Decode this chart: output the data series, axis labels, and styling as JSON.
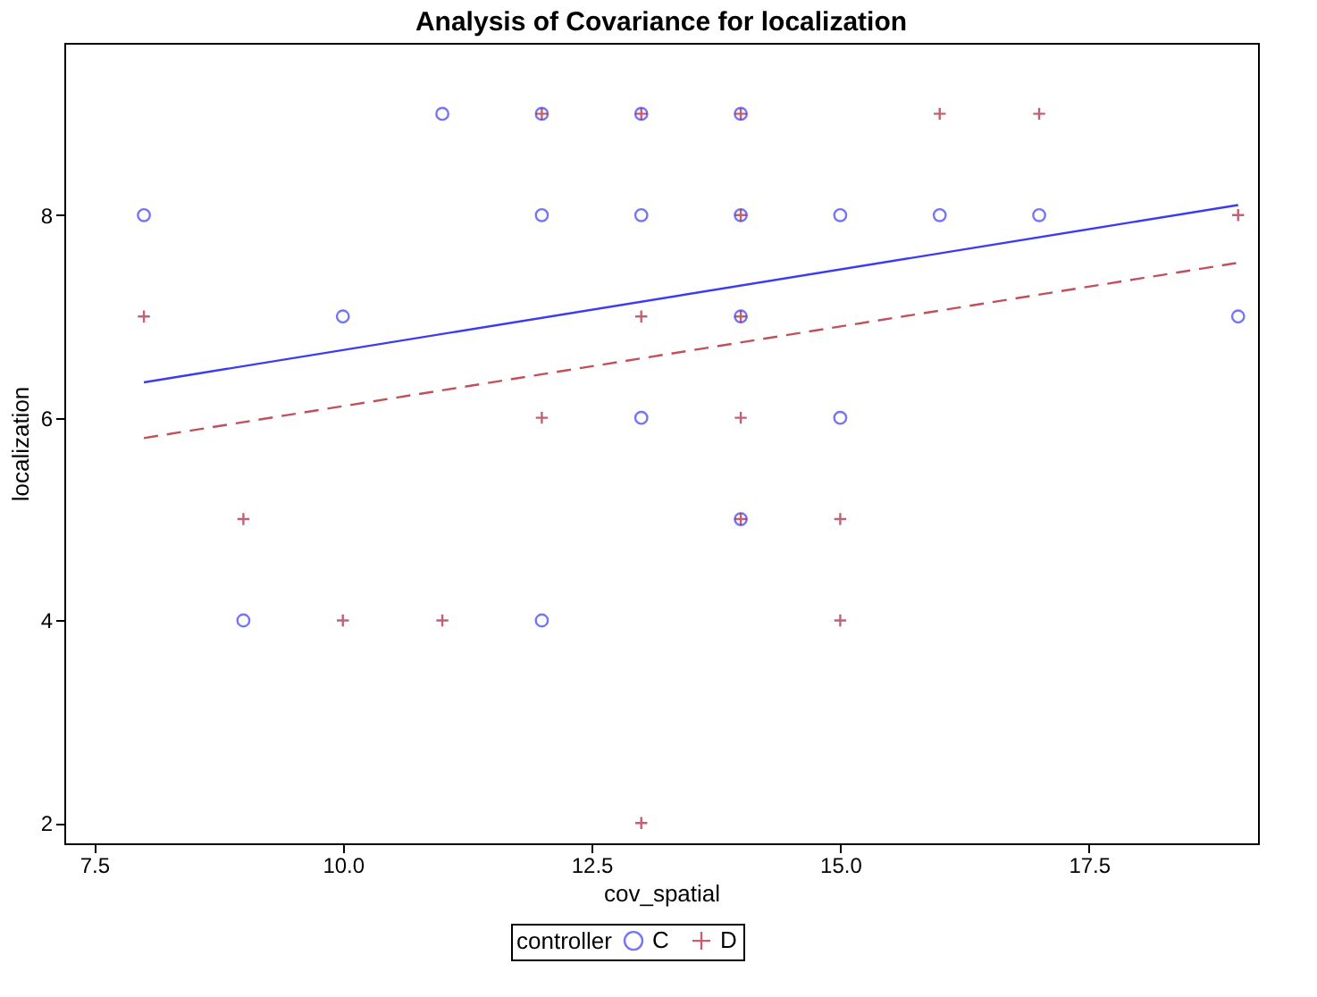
{
  "chart_data": {
    "type": "scatter",
    "title": "Analysis of Covariance for localization",
    "xlabel": "cov_spatial",
    "ylabel": "localization",
    "legend_title": "controller",
    "legend": "bottom",
    "xlim": [
      7.2,
      19.2
    ],
    "ylim": [
      1.8,
      9.7
    ],
    "xticks": [
      7.5,
      {
        "value": 10,
        "label": "10.0"
      },
      12.5,
      {
        "value": 15,
        "label": "15.0"
      },
      17.5
    ],
    "yticks": [
      2,
      4,
      6,
      8
    ],
    "grid": false,
    "series": [
      {
        "name": "C",
        "marker": "circle",
        "color": "#3b3bf5",
        "x": [
          8,
          9,
          10,
          11,
          12,
          12,
          12,
          13,
          13,
          13,
          14,
          14,
          14,
          14,
          15,
          15,
          16,
          17,
          19
        ],
        "values": [
          8,
          4,
          7,
          9,
          9,
          8,
          4,
          9,
          8,
          6,
          9,
          8,
          7,
          5,
          8,
          6,
          8,
          8,
          7
        ]
      },
      {
        "name": "D",
        "marker": "cross",
        "color": "#a8203a",
        "x": [
          8,
          9,
          10,
          11,
          12,
          12,
          13,
          13,
          13,
          14,
          14,
          14,
          14,
          14,
          15,
          15,
          16,
          17,
          19
        ],
        "values": [
          7,
          5,
          4,
          4,
          9,
          6,
          9,
          7,
          2,
          9,
          8,
          7,
          6,
          5,
          5,
          4,
          9,
          9,
          8
        ]
      },
      {
        "type": "line",
        "line_style": "solid",
        "color": "#3b3bf5",
        "x": [
          8,
          19
        ],
        "values": [
          6.35,
          8.1
        ]
      },
      {
        "type": "line",
        "line_style": "dashed",
        "color": "#c0505a",
        "x": [
          8,
          19
        ],
        "values": [
          5.8,
          7.53
        ]
      }
    ]
  }
}
